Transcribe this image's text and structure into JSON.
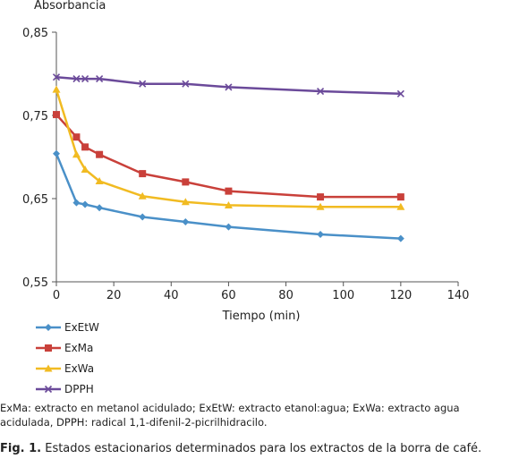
{
  "chart_data": {
    "type": "line",
    "ylabel": "Absorbancia",
    "xlabel": "Tiempo (min)",
    "xlim": [
      0,
      140
    ],
    "ylim": [
      0.55,
      0.85
    ],
    "x_ticks": [
      0,
      20,
      40,
      60,
      80,
      100,
      120,
      140
    ],
    "x_tick_labels": [
      "0",
      "20",
      "40",
      "60",
      "80",
      "100",
      "120",
      "140"
    ],
    "y_ticks": [
      0.55,
      0.65,
      0.75,
      0.85
    ],
    "y_tick_labels": [
      "0,55",
      "0,65",
      "0,75",
      "0,85"
    ],
    "grid": false,
    "legend_position": "bottom-left",
    "series": [
      {
        "name": "ExEtW",
        "color": "#4a90c8",
        "marker": "diamond",
        "x": [
          0,
          7,
          10,
          15,
          30,
          45,
          60,
          92,
          120
        ],
        "values": [
          0.704,
          0.645,
          0.643,
          0.639,
          0.628,
          0.622,
          0.616,
          0.607,
          0.602
        ]
      },
      {
        "name": "ExMa",
        "color": "#c9403a",
        "marker": "square",
        "x": [
          0,
          7,
          10,
          15,
          30,
          45,
          60,
          92,
          120
        ],
        "values": [
          0.751,
          0.724,
          0.712,
          0.703,
          0.68,
          0.67,
          0.659,
          0.652,
          0.652
        ]
      },
      {
        "name": "ExWa",
        "color": "#f1bb22",
        "marker": "triangle",
        "x": [
          0,
          7,
          10,
          15,
          30,
          45,
          60,
          92,
          120
        ],
        "values": [
          0.781,
          0.703,
          0.685,
          0.671,
          0.653,
          0.646,
          0.642,
          0.64,
          0.64
        ]
      },
      {
        "name": "DPPH",
        "color": "#6b4a9a",
        "marker": "x",
        "x": [
          0,
          7,
          10,
          15,
          30,
          45,
          60,
          92,
          120
        ],
        "values": [
          0.796,
          0.794,
          0.794,
          0.794,
          0.788,
          0.788,
          0.784,
          0.779,
          0.776
        ]
      }
    ]
  },
  "footnote": "ExMa: extracto en metanol acidulado; ExEtW: extracto etanol:agua; ExWa: extracto agua acidulada, DPPH: radical 1,1-difenil-2-picrilhidracilo.",
  "caption": {
    "label": "Fig. 1.",
    "text": " Estados estacionarios determinados para los extractos de la borra de café."
  }
}
